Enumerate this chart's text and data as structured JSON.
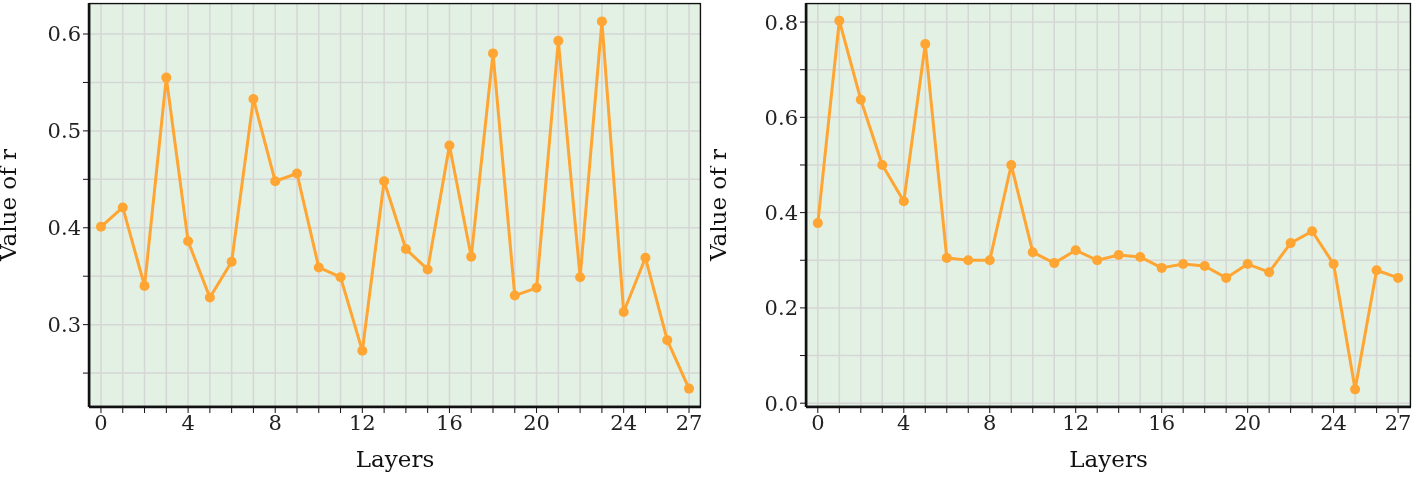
{
  "chart_data": [
    {
      "type": "line",
      "xlabel": "Layers",
      "ylabel": "Value of r",
      "x": [
        0,
        1,
        2,
        3,
        4,
        5,
        6,
        7,
        8,
        9,
        10,
        11,
        12,
        13,
        14,
        15,
        16,
        17,
        18,
        19,
        20,
        21,
        22,
        23,
        24,
        25,
        26,
        27
      ],
      "series": [
        {
          "color": "#ffa533",
          "values": [
            0.401,
            0.421,
            0.34,
            0.555,
            0.386,
            0.328,
            0.365,
            0.533,
            0.448,
            0.456,
            0.359,
            0.349,
            0.273,
            0.448,
            0.378,
            0.357,
            0.485,
            0.37,
            0.58,
            0.33,
            0.338,
            0.593,
            0.349,
            0.613,
            0.313,
            0.369,
            0.284,
            0.234
          ]
        }
      ],
      "xlim": [
        -0.55,
        27.55
      ],
      "xticks": [
        0,
        {
          "value": 1,
          "label": null
        },
        {
          "value": 2,
          "label": null
        },
        {
          "value": 3,
          "label": null
        },
        4,
        {
          "value": 5,
          "label": null
        },
        {
          "value": 6,
          "label": null
        },
        {
          "value": 7,
          "label": null
        },
        8,
        {
          "value": 9,
          "label": null
        },
        {
          "value": 10,
          "label": null
        },
        {
          "value": 11,
          "label": null
        },
        12,
        {
          "value": 13,
          "label": null
        },
        {
          "value": 14,
          "label": null
        },
        {
          "value": 15,
          "label": null
        },
        16,
        {
          "value": 17,
          "label": null
        },
        {
          "value": 18,
          "label": null
        },
        {
          "value": 19,
          "label": null
        },
        20,
        {
          "value": 21,
          "label": null
        },
        {
          "value": 22,
          "label": null
        },
        {
          "value": 23,
          "label": null
        },
        24,
        {
          "value": 25,
          "label": null
        },
        {
          "value": 26,
          "label": null
        },
        27
      ],
      "ylim": [
        0.215,
        0.632
      ],
      "yticks": [
        {
          "value": 0.25,
          "label": null
        },
        {
          "value": 0.3,
          "label": "0.3"
        },
        {
          "value": 0.35,
          "label": null
        },
        {
          "value": 0.4,
          "label": "0.4"
        },
        {
          "value": 0.45,
          "label": null
        },
        {
          "value": 0.5,
          "label": "0.5"
        },
        {
          "value": 0.55,
          "label": null
        },
        {
          "value": 0.6,
          "label": "0.6"
        }
      ],
      "grid": true,
      "marker": "circle",
      "line_style": "solid"
    },
    {
      "type": "line",
      "xlabel": "Layers",
      "ylabel": "Value of r",
      "x": [
        0,
        1,
        2,
        3,
        4,
        5,
        6,
        7,
        8,
        9,
        10,
        11,
        12,
        13,
        14,
        15,
        16,
        17,
        18,
        19,
        20,
        21,
        22,
        23,
        24,
        25,
        26,
        27
      ],
      "series": [
        {
          "color": "#ffa533",
          "values": [
            0.378,
            0.803,
            0.637,
            0.5,
            0.424,
            0.754,
            0.305,
            0.3,
            0.3,
            0.5,
            0.317,
            0.294,
            0.321,
            0.3,
            0.311,
            0.307,
            0.284,
            0.292,
            0.288,
            0.263,
            0.292,
            0.275,
            0.336,
            0.361,
            0.292,
            0.029,
            0.279,
            0.263
          ]
        }
      ],
      "xlim": [
        -0.55,
        27.6
      ],
      "xticks": [
        0,
        {
          "value": 1,
          "label": null
        },
        {
          "value": 2,
          "label": null
        },
        {
          "value": 3,
          "label": null
        },
        4,
        {
          "value": 5,
          "label": null
        },
        {
          "value": 6,
          "label": null
        },
        {
          "value": 7,
          "label": null
        },
        8,
        {
          "value": 9,
          "label": null
        },
        {
          "value": 10,
          "label": null
        },
        {
          "value": 11,
          "label": null
        },
        12,
        {
          "value": 13,
          "label": null
        },
        {
          "value": 14,
          "label": null
        },
        {
          "value": 15,
          "label": null
        },
        16,
        {
          "value": 17,
          "label": null
        },
        {
          "value": 18,
          "label": null
        },
        {
          "value": 19,
          "label": null
        },
        20,
        {
          "value": 21,
          "label": null
        },
        {
          "value": 22,
          "label": null
        },
        {
          "value": 23,
          "label": null
        },
        24,
        {
          "value": 25,
          "label": null
        },
        {
          "value": 26,
          "label": null
        },
        27
      ],
      "ylim": [
        -0.008,
        0.84
      ],
      "yticks": [
        {
          "value": 0,
          "label": "0.0"
        },
        {
          "value": 0.1,
          "label": null
        },
        {
          "value": 0.2,
          "label": "0.2"
        },
        {
          "value": 0.3,
          "label": null
        },
        {
          "value": 0.4,
          "label": "0.4"
        },
        {
          "value": 0.5,
          "label": null
        },
        {
          "value": 0.6,
          "label": "0.6"
        },
        {
          "value": 0.7,
          "label": null
        },
        {
          "value": 0.8,
          "label": "0.8"
        }
      ],
      "grid": true,
      "marker": "circle",
      "line_style": "solid"
    }
  ]
}
